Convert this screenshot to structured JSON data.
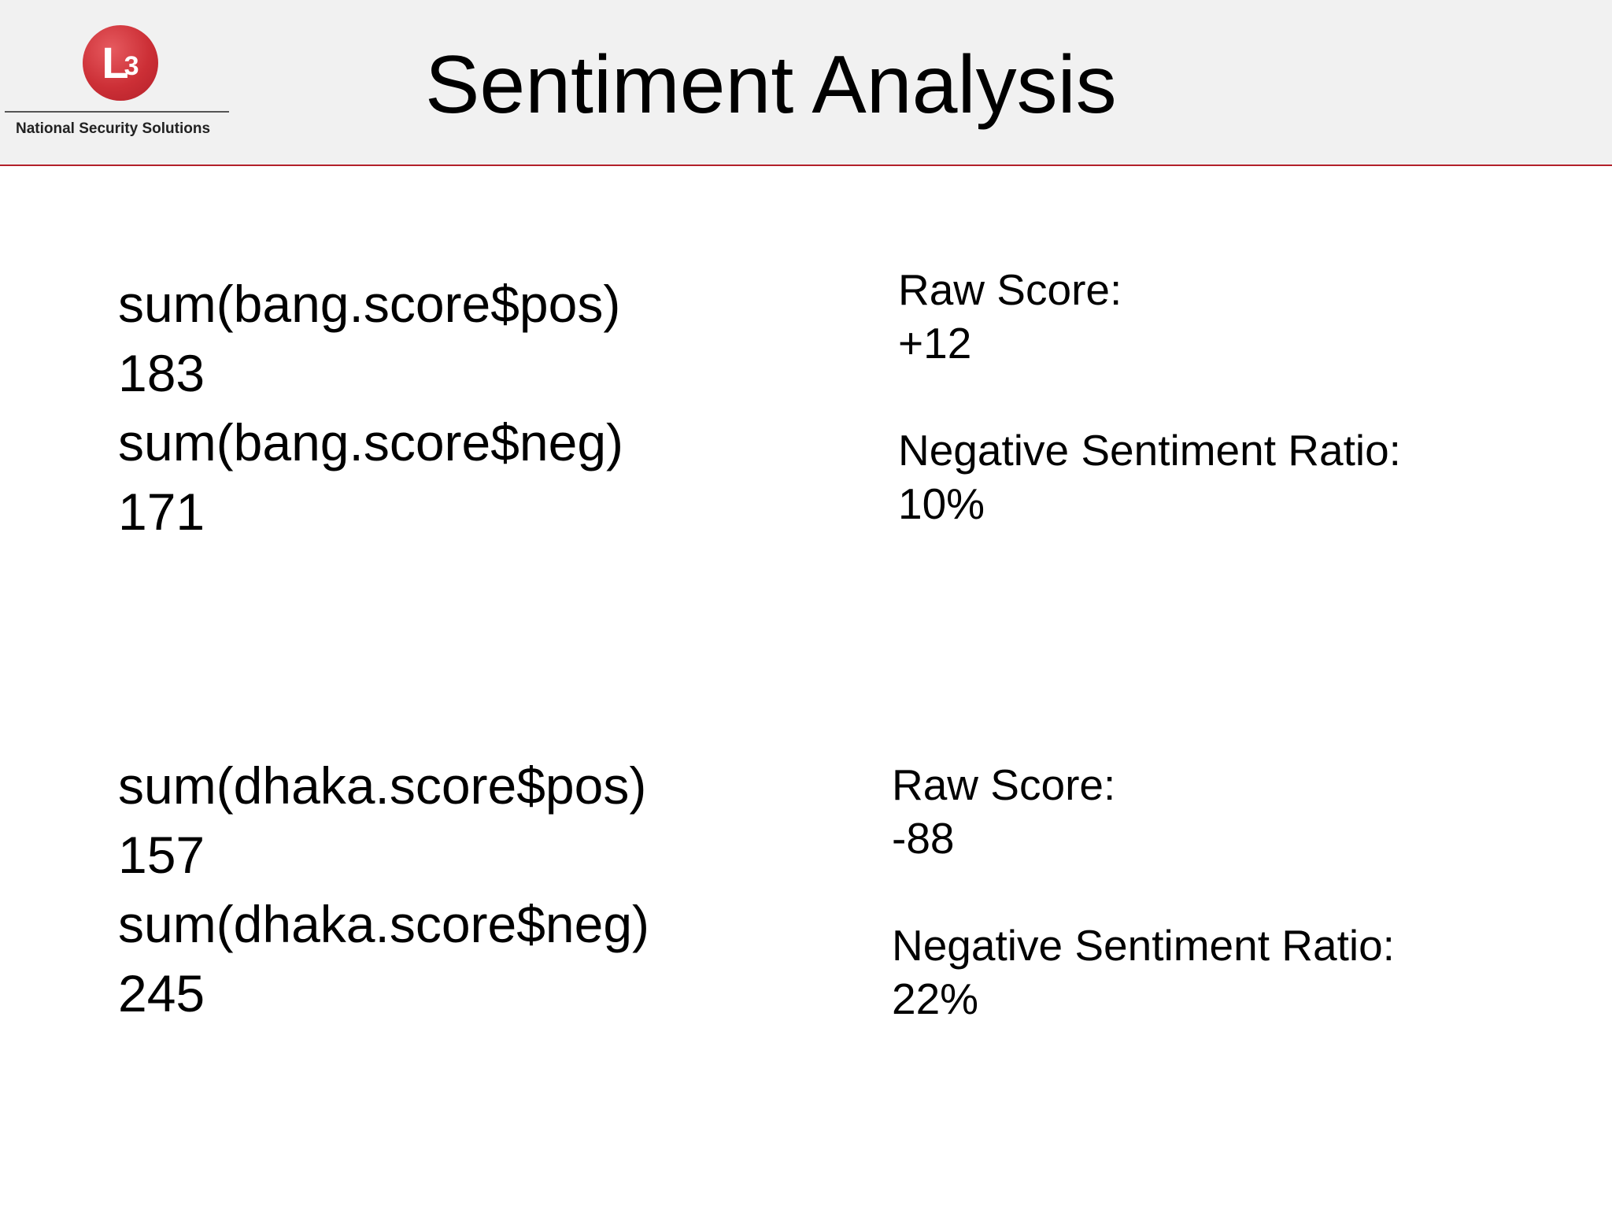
{
  "header": {
    "title": "Sentiment Analysis",
    "logo_text": "National Security Solutions",
    "logo_mark": "L",
    "logo_mark_sub": "3",
    "accent_color": "#b3202a"
  },
  "sections": [
    {
      "pos_expr": "sum(bang.score$pos)",
      "pos_value": "183",
      "neg_expr": "sum(bang.score$neg)",
      "neg_value": "171",
      "raw_label": "Raw Score:",
      "raw_value": "+12",
      "ratio_label": "Negative Sentiment Ratio:",
      "ratio_value": "10%"
    },
    {
      "pos_expr": "sum(dhaka.score$pos)",
      "pos_value": "157",
      "neg_expr": "sum(dhaka.score$neg)",
      "neg_value": "245",
      "raw_label": "Raw Score:",
      "raw_value": "-88",
      "ratio_label": "Negative Sentiment Ratio:",
      "ratio_value": "22%"
    }
  ]
}
